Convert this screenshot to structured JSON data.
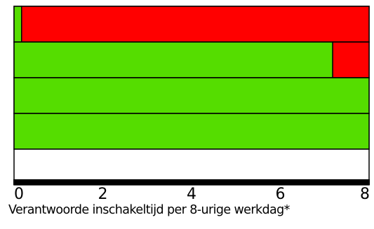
{
  "chart_data": {
    "type": "bar",
    "orientation": "horizontal",
    "stacked": true,
    "categories": [
      "",
      "",
      "",
      "",
      ""
    ],
    "series": [
      {
        "color": "#55dd00",
        "values": [
          0.17,
          7.18,
          8,
          8,
          0
        ]
      },
      {
        "color": "#ff0000",
        "values": [
          7.83,
          0.82,
          0,
          0,
          0
        ]
      }
    ],
    "xlim": [
      0,
      8
    ],
    "xticks": [
      0,
      2,
      4,
      6,
      8
    ],
    "xlabel": "Verantwoorde inschakeltijd per 8-urige werkdag*",
    "grid": false,
    "legend": "none"
  }
}
